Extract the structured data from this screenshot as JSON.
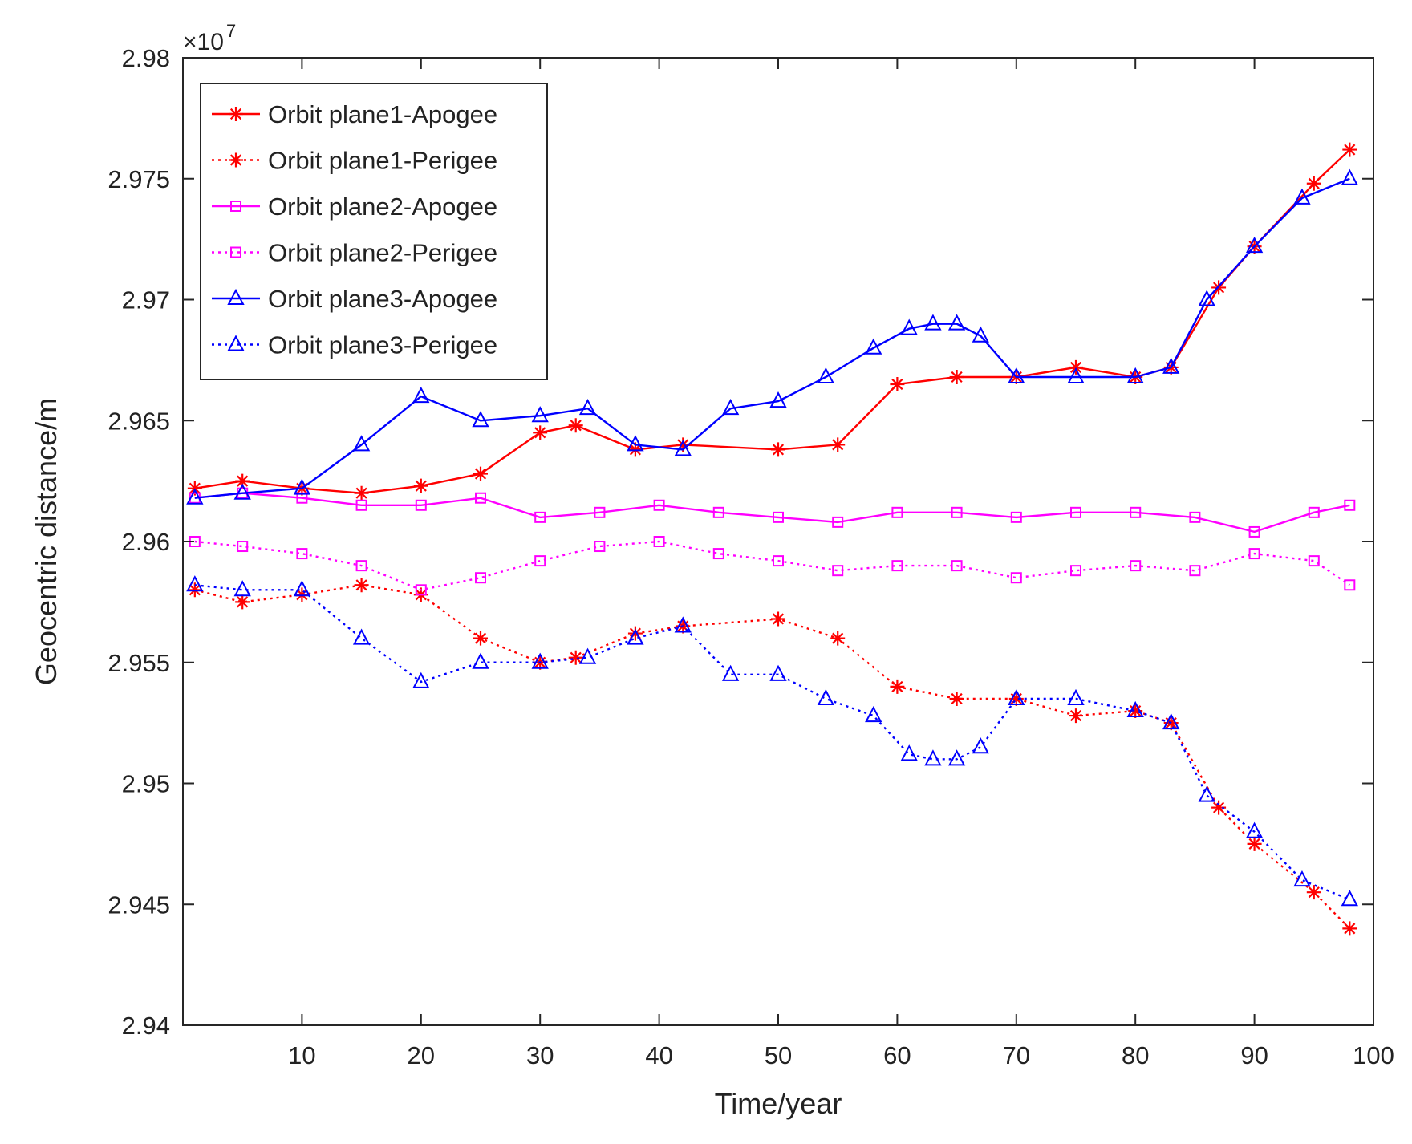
{
  "chart_data": {
    "type": "line",
    "title": "",
    "xlabel": "Time/year",
    "ylabel": "Geocentric distance/m",
    "y_multiplier_label": "×10",
    "y_multiplier_exponent": "7",
    "xlim": [
      0,
      100
    ],
    "ylim": [
      2.94,
      2.98
    ],
    "x_ticks": [
      10,
      20,
      30,
      40,
      50,
      60,
      70,
      80,
      90,
      100
    ],
    "x_tick_labels": [
      "10",
      "20",
      "30",
      "40",
      "50",
      "60",
      "70",
      "80",
      "90",
      "100"
    ],
    "y_ticks": [
      2.94,
      2.945,
      2.95,
      2.955,
      2.96,
      2.965,
      2.97,
      2.975,
      2.98
    ],
    "y_tick_labels": [
      "2.94",
      "2.945",
      "2.95",
      "2.955",
      "2.96",
      "2.965",
      "2.97",
      "2.975",
      "2.98"
    ],
    "legend_position": "top-left",
    "grid": false,
    "series": [
      {
        "name": "Orbit plane1-Apogee",
        "color": "#ff0000",
        "style": "solid",
        "marker": "asterisk",
        "x": [
          1,
          5,
          10,
          15,
          20,
          25,
          30,
          33,
          38,
          42,
          50,
          55,
          60,
          65,
          70,
          75,
          80,
          83,
          87,
          90,
          95,
          98
        ],
        "values": [
          2.9622,
          2.9625,
          2.9622,
          2.962,
          2.9623,
          2.9628,
          2.9645,
          2.9648,
          2.9638,
          2.964,
          2.9638,
          2.964,
          2.9665,
          2.9668,
          2.9668,
          2.9672,
          2.9668,
          2.9672,
          2.9705,
          2.9722,
          2.9748,
          2.9762
        ]
      },
      {
        "name": "Orbit plane1-Perigee",
        "color": "#ff0000",
        "style": "dotted",
        "marker": "asterisk",
        "x": [
          1,
          5,
          10,
          15,
          20,
          25,
          30,
          33,
          38,
          42,
          50,
          55,
          60,
          65,
          70,
          75,
          80,
          83,
          87,
          90,
          95,
          98
        ],
        "values": [
          2.958,
          2.9575,
          2.9578,
          2.9582,
          2.9578,
          2.956,
          2.955,
          2.9552,
          2.9562,
          2.9565,
          2.9568,
          2.956,
          2.954,
          2.9535,
          2.9535,
          2.9528,
          2.953,
          2.9525,
          2.949,
          2.9475,
          2.9455,
          2.944
        ]
      },
      {
        "name": "Orbit plane2-Apogee",
        "color": "#ff00ff",
        "style": "solid",
        "marker": "square",
        "x": [
          1,
          5,
          10,
          15,
          20,
          25,
          30,
          35,
          40,
          45,
          50,
          55,
          60,
          65,
          70,
          75,
          80,
          85,
          90,
          95,
          98
        ],
        "values": [
          2.9618,
          2.962,
          2.9618,
          2.9615,
          2.9615,
          2.9618,
          2.961,
          2.9612,
          2.9615,
          2.9612,
          2.961,
          2.9608,
          2.9612,
          2.9612,
          2.961,
          2.9612,
          2.9612,
          2.961,
          2.9604,
          2.9612,
          2.9615
        ]
      },
      {
        "name": "Orbit plane2-Perigee",
        "color": "#ff00ff",
        "style": "dotted",
        "marker": "square",
        "x": [
          1,
          5,
          10,
          15,
          20,
          25,
          30,
          35,
          40,
          45,
          50,
          55,
          60,
          65,
          70,
          75,
          80,
          85,
          90,
          95,
          98
        ],
        "values": [
          2.96,
          2.9598,
          2.9595,
          2.959,
          2.958,
          2.9585,
          2.9592,
          2.9598,
          2.96,
          2.9595,
          2.9592,
          2.9588,
          2.959,
          2.959,
          2.9585,
          2.9588,
          2.959,
          2.9588,
          2.9595,
          2.9592,
          2.9582
        ]
      },
      {
        "name": "Orbit plane3-Apogee",
        "color": "#0000ff",
        "style": "solid",
        "marker": "triangle",
        "x": [
          1,
          5,
          10,
          15,
          20,
          25,
          30,
          34,
          38,
          42,
          46,
          50,
          54,
          58,
          61,
          63,
          65,
          67,
          70,
          75,
          80,
          83,
          86,
          90,
          94,
          98
        ],
        "values": [
          2.9618,
          2.962,
          2.9622,
          2.964,
          2.966,
          2.965,
          2.9652,
          2.9655,
          2.964,
          2.9638,
          2.9655,
          2.9658,
          2.9668,
          2.968,
          2.9688,
          2.969,
          2.969,
          2.9685,
          2.9668,
          2.9668,
          2.9668,
          2.9672,
          2.97,
          2.9722,
          2.9742,
          2.975
        ]
      },
      {
        "name": "Orbit plane3-Perigee",
        "color": "#0000ff",
        "style": "dotted",
        "marker": "triangle",
        "x": [
          1,
          5,
          10,
          15,
          20,
          25,
          30,
          34,
          38,
          42,
          46,
          50,
          54,
          58,
          61,
          63,
          65,
          67,
          70,
          75,
          80,
          83,
          86,
          90,
          94,
          98
        ],
        "values": [
          2.9582,
          2.958,
          2.958,
          2.956,
          2.9542,
          2.955,
          2.955,
          2.9552,
          2.956,
          2.9565,
          2.9545,
          2.9545,
          2.9535,
          2.9528,
          2.9512,
          2.951,
          2.951,
          2.9515,
          2.9535,
          2.9535,
          2.953,
          2.9525,
          2.9495,
          2.948,
          2.946,
          2.9452
        ]
      }
    ]
  }
}
